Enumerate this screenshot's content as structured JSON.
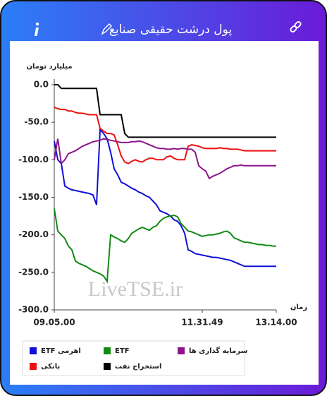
{
  "header": {
    "title": "پول درشت حقیقی صنایع"
  },
  "chart_data": {
    "type": "line",
    "ylabel": "میلیارد تومان",
    "xlabel": "زمان",
    "watermark": "LiveTSE.ir",
    "categories": [
      "09.05.00",
      null,
      null,
      null,
      null,
      null,
      null,
      null,
      null,
      null,
      null,
      null,
      null,
      null,
      null,
      null,
      null,
      null,
      null,
      null,
      null,
      null,
      null,
      null,
      null,
      null,
      null,
      null,
      null,
      null,
      null,
      null,
      null,
      null,
      null,
      null,
      null,
      null,
      null,
      null,
      null,
      null,
      "11.31.49",
      null,
      null,
      null,
      null,
      null,
      null,
      null,
      null,
      null,
      null,
      null,
      null,
      null,
      null,
      null,
      null,
      null,
      null,
      null,
      null,
      "13.14.00"
    ],
    "ylim": [
      -300,
      0
    ],
    "yticks": [
      {
        "value": 0,
        "label": "0.0"
      },
      {
        "value": -50,
        "label": "-50.0"
      },
      {
        "value": -100,
        "label": "-100.0"
      },
      {
        "value": -150,
        "label": "-150.0"
      },
      {
        "value": -200,
        "label": "-200.0"
      },
      {
        "value": -250,
        "label": "-250.0"
      },
      {
        "value": -300,
        "label": "-300.0"
      }
    ],
    "series": [
      {
        "name": "ETF اهرمی",
        "color": "#1010d8",
        "values": [
          -75,
          -100,
          -105,
          -135,
          -138,
          -140,
          -141,
          -142,
          -143,
          -144,
          -145,
          -147,
          -160,
          -60,
          -65,
          -72,
          -90,
          -112,
          -120,
          -130,
          -132,
          -135,
          -138,
          -140,
          -143,
          -145,
          -148,
          -150,
          -155,
          -160,
          -168,
          -170,
          -172,
          -175,
          -180,
          -182,
          -188,
          -198,
          -220,
          -222,
          -225,
          -226,
          -227,
          -228,
          -229,
          -230,
          -230,
          -231,
          -232,
          -233,
          -234,
          -236,
          -238,
          -240,
          -242,
          -242,
          -242,
          -242,
          -242,
          -242,
          -242,
          -242,
          -242,
          -242
        ]
      },
      {
        "name": "ETF",
        "color": "#138a13",
        "values": [
          -165,
          -195,
          -200,
          -205,
          -215,
          -220,
          -235,
          -238,
          -240,
          -242,
          -245,
          -248,
          -250,
          -252,
          -255,
          -262,
          -200,
          -203,
          -205,
          -208,
          -210,
          -205,
          -198,
          -195,
          -192,
          -190,
          -192,
          -194,
          -190,
          -188,
          -182,
          -178,
          -176,
          -175,
          -174,
          -176,
          -185,
          -190,
          -195,
          -196,
          -198,
          -200,
          -202,
          -201,
          -200,
          -200,
          -199,
          -198,
          -196,
          -195,
          -198,
          -204,
          -206,
          -208,
          -210,
          -210,
          -211,
          -212,
          -213,
          -213,
          -214,
          -214,
          -215,
          -215
        ]
      },
      {
        "name": "سرمایه گذاری ها",
        "color": "#8b168b",
        "values": [
          -100,
          -72,
          -105,
          -100,
          -92,
          -90,
          -88,
          -85,
          -82,
          -80,
          -78,
          -76,
          -75,
          -74,
          -72,
          -73,
          -74,
          -75,
          -76,
          -77,
          -77,
          -77,
          -76,
          -76,
          -75,
          -76,
          -78,
          -80,
          -82,
          -84,
          -85,
          -85,
          -86,
          -86,
          -85,
          -86,
          -85,
          -85,
          -86,
          -86,
          -90,
          -108,
          -112,
          -115,
          -125,
          -122,
          -120,
          -118,
          -115,
          -112,
          -110,
          -108,
          -108,
          -107,
          -108,
          -108,
          -108,
          -108,
          -108,
          -108,
          -108,
          -108,
          -108,
          -108
        ]
      },
      {
        "name": "بانکی",
        "color": "#ee1111",
        "values": [
          -30,
          -32,
          -33,
          -33,
          -35,
          -35,
          -37,
          -38,
          -38,
          -39,
          -40,
          -40,
          -40,
          -58,
          -62,
          -65,
          -65,
          -67,
          -80,
          -95,
          -103,
          -105,
          -102,
          -100,
          -102,
          -103,
          -100,
          -98,
          -98,
          -100,
          -100,
          -100,
          -96,
          -95,
          -98,
          -100,
          -100,
          -100,
          -82,
          -80,
          -81,
          -82,
          -84,
          -85,
          -85,
          -85,
          -85,
          -84,
          -85,
          -85,
          -86,
          -86,
          -86,
          -87,
          -88,
          -88,
          -88,
          -88,
          -88,
          -88,
          -88,
          -88,
          -88,
          -88
        ]
      },
      {
        "name": "استخراج نفت",
        "color": "#000000",
        "values": [
          0,
          0,
          -5,
          -5,
          -5,
          -5,
          -5,
          -5,
          -5,
          -5,
          -5,
          -5,
          -5,
          -40,
          -40,
          -40,
          -40,
          -40,
          -40,
          -40,
          -65,
          -70,
          -70,
          -70,
          -70,
          -70,
          -70,
          -70,
          -70,
          -70,
          -70,
          -70,
          -70,
          -70,
          -70,
          -70,
          -70,
          -70,
          -70,
          -70,
          -70,
          -70,
          -70,
          -70,
          -70,
          -70,
          -70,
          -70,
          -70,
          -70,
          -70,
          -70,
          -70,
          -70,
          -70,
          -70,
          -70,
          -70,
          -70,
          -70,
          -70,
          -70,
          -70,
          -70
        ]
      }
    ]
  }
}
